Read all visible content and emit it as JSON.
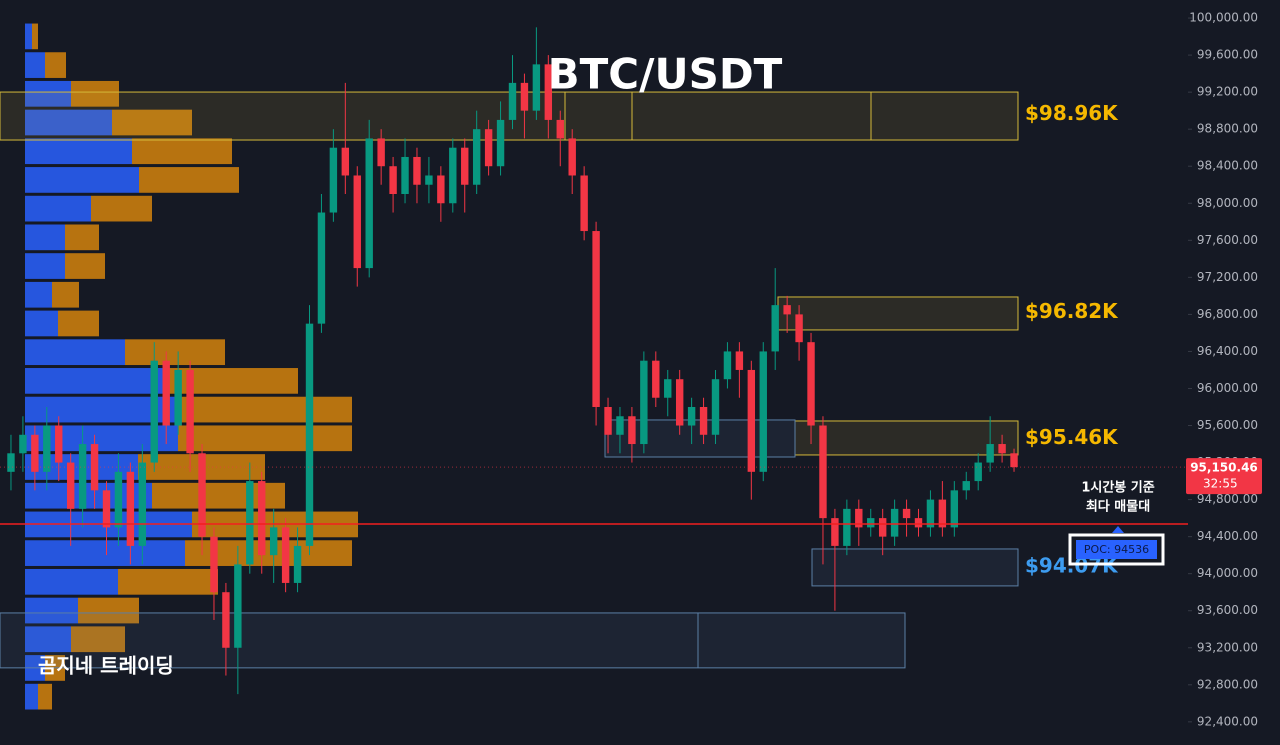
{
  "chart_data": {
    "type": "candlestick",
    "title": "BTC/USDT",
    "watermark": "곰지네 트레이딩",
    "up_color": "#089981",
    "down_color": "#f23645",
    "open": [
      95100,
      95300,
      95500,
      95100,
      95600,
      95200,
      94700,
      95400,
      94900,
      94500,
      95100,
      94300,
      95200,
      96300,
      95600,
      96200,
      95300,
      94400,
      93800,
      93200,
      94100,
      95000,
      94200,
      94500,
      93900,
      94300,
      96700,
      97900,
      98600,
      98300,
      97300,
      98700,
      98400,
      98100,
      98500,
      98200,
      98300,
      98000,
      98600,
      98200,
      98800,
      98400,
      98900,
      99300,
      99000,
      99500,
      98900,
      98700,
      98300,
      97700,
      95800,
      95500,
      95700,
      95400,
      96300,
      95900,
      96100,
      95600,
      95800,
      95500,
      96100,
      96400,
      96200,
      95100,
      96400,
      96900,
      96800,
      96500,
      95600,
      94600,
      94300,
      94700,
      94500,
      94600,
      94400,
      94700,
      94600,
      94500,
      94800,
      94500,
      94900,
      95000,
      95200,
      95400,
      95300
    ],
    "high": [
      95500,
      95700,
      95600,
      95800,
      95700,
      95300,
      95600,
      95500,
      95000,
      95300,
      95200,
      95400,
      96500,
      96400,
      96400,
      96300,
      95400,
      94500,
      93900,
      94300,
      95200,
      95100,
      94700,
      94600,
      94500,
      96900,
      98100,
      98800,
      99300,
      98400,
      98900,
      98800,
      98500,
      98700,
      98600,
      98500,
      98400,
      98700,
      98700,
      99000,
      98900,
      99100,
      99600,
      99400,
      99900,
      99600,
      99000,
      98800,
      98400,
      97800,
      95900,
      95800,
      95800,
      96400,
      96400,
      96200,
      96200,
      95900,
      95900,
      96200,
      96500,
      96500,
      96300,
      96500,
      97300,
      97000,
      96900,
      96600,
      95700,
      94700,
      94800,
      94800,
      94700,
      94700,
      94800,
      94800,
      94700,
      94900,
      95000,
      95000,
      95100,
      95300,
      95700,
      95500,
      95350
    ],
    "low": [
      94900,
      95100,
      94900,
      94900,
      95000,
      94300,
      94500,
      94700,
      94200,
      94300,
      94100,
      94100,
      95100,
      95400,
      95500,
      95100,
      94200,
      93500,
      92900,
      92700,
      94000,
      94000,
      93900,
      93800,
      93800,
      94200,
      96600,
      97800,
      98100,
      97100,
      97200,
      98200,
      97900,
      98000,
      98000,
      98000,
      97800,
      97900,
      97900,
      98100,
      98300,
      98300,
      98800,
      98700,
      98900,
      98700,
      98400,
      98100,
      97600,
      95600,
      95300,
      95300,
      95200,
      95300,
      95800,
      95700,
      95500,
      95400,
      95400,
      95400,
      96000,
      95900,
      94800,
      95000,
      96200,
      96600,
      96300,
      95400,
      94100,
      93600,
      94200,
      94300,
      94400,
      94200,
      94300,
      94400,
      94400,
      94400,
      94400,
      94400,
      94800,
      94900,
      95100,
      95200,
      95100
    ],
    "close": [
      95300,
      95500,
      95100,
      95600,
      95200,
      94700,
      95400,
      94900,
      94500,
      95100,
      94300,
      95200,
      96300,
      95600,
      96200,
      95300,
      94400,
      93800,
      93200,
      94100,
      95000,
      94200,
      94500,
      93900,
      94300,
      96700,
      97900,
      98600,
      98300,
      97300,
      98700,
      98400,
      98100,
      98500,
      98200,
      98300,
      98000,
      98600,
      98200,
      98800,
      98400,
      98900,
      99300,
      99000,
      99500,
      98900,
      98700,
      98300,
      97700,
      95800,
      95500,
      95700,
      95400,
      96300,
      95900,
      96100,
      95600,
      95800,
      95500,
      96100,
      96400,
      96200,
      95100,
      96400,
      96900,
      96800,
      96500,
      95600,
      94600,
      94300,
      94700,
      94500,
      94600,
      94400,
      94700,
      94600,
      94500,
      94800,
      94500,
      94900,
      95000,
      95200,
      95400,
      95300,
      95150.46
    ],
    "ylim": [
      92150,
      100195
    ],
    "yticks": [
      {
        "value": 100000,
        "label": "100,000.00"
      },
      {
        "value": 99600,
        "label": "99,600.00"
      },
      {
        "value": 99200,
        "label": "99,200.00"
      },
      {
        "value": 98800,
        "label": "98,800.00"
      },
      {
        "value": 98400,
        "label": "98,400.00"
      },
      {
        "value": 98000,
        "label": "98,000.00"
      },
      {
        "value": 97600,
        "label": "97,600.00"
      },
      {
        "value": 97200,
        "label": "97,200.00"
      },
      {
        "value": 96800,
        "label": "96,800.00"
      },
      {
        "value": 96400,
        "label": "96,400.00"
      },
      {
        "value": 96000,
        "label": "96,000.00"
      },
      {
        "value": 95600,
        "label": "95,600.00"
      },
      {
        "value": 95200,
        "label": "95,200.00"
      },
      {
        "value": 94800,
        "label": "94,800.00"
      },
      {
        "value": 94400,
        "label": "94,400.00"
      },
      {
        "value": 94000,
        "label": "94,000.00"
      },
      {
        "value": 93600,
        "label": "93,600.00"
      },
      {
        "value": 93200,
        "label": "93,200.00"
      },
      {
        "value": 92800,
        "label": "92,800.00"
      },
      {
        "value": 92400,
        "label": "92,400.00"
      }
    ],
    "grid": false,
    "volume_profile": {
      "bins": [
        99957,
        99647,
        99337,
        99027,
        98717,
        98407,
        98097,
        97787,
        97477,
        97167,
        96857,
        96547,
        96237,
        95927,
        95617,
        95307,
        94997,
        94687,
        94377,
        94067,
        93757,
        93447,
        93137,
        92827,
        92517
      ],
      "buy": [
        7,
        20,
        46,
        87,
        107,
        114,
        66,
        40,
        40,
        27,
        33,
        100,
        140,
        153,
        153,
        113,
        127,
        167,
        160,
        93,
        53,
        46,
        20,
        13
      ],
      "sell": [
        6,
        21,
        48,
        80,
        100,
        100,
        61,
        34,
        40,
        27,
        41,
        100,
        133,
        174,
        174,
        127,
        133,
        166,
        167,
        100,
        61,
        54,
        20,
        14
      ],
      "buy_color": "#2962ff",
      "sell_color": "#e08a0b"
    },
    "zones": [
      {
        "low": 98683,
        "high": 99201,
        "color": "#d4b93a",
        "value": 98960,
        "label": "$98.96K"
      },
      {
        "low": 96632,
        "high": 96988,
        "color": "#d4b93a",
        "value": 96820,
        "label": "$96.82K"
      },
      {
        "low": 95282,
        "high": 95649,
        "color": "#d4b93a",
        "value": 95460,
        "label": "$95.46K"
      },
      {
        "low": 95260,
        "high": 95660,
        "color": "#5b7fa6"
      },
      {
        "low": 93868,
        "high": 94267,
        "color": "#5b7fa6",
        "value": 94070,
        "label": "$94.07K"
      },
      {
        "low": 92983,
        "high": 93576,
        "color": "#5b7fa6"
      }
    ],
    "poc": {
      "value": 94536,
      "label": "POC: 94536",
      "color": "#f21f1f",
      "annotation": [
        "1시간봉 기준",
        "최다 매물대"
      ]
    },
    "last_price": {
      "value": 95150.46,
      "label": "95,150.46",
      "countdown": "32:55"
    }
  }
}
